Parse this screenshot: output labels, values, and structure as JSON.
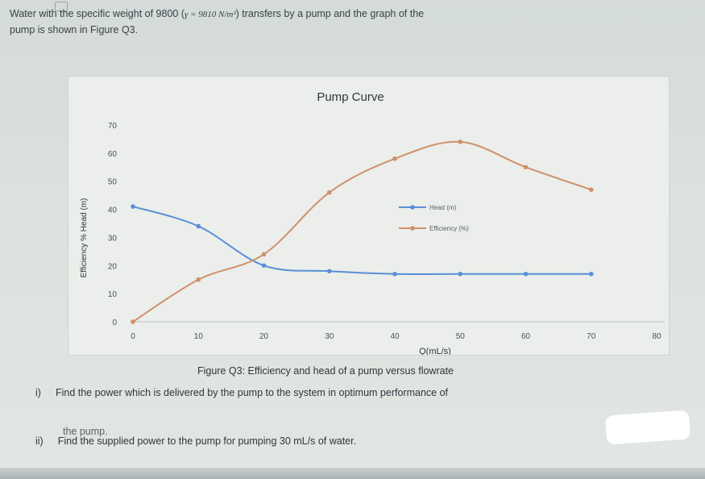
{
  "intro": {
    "line1_before": "Water with the specific weight of 9800 (",
    "formula": "γ = 9810 N/m³",
    "line1_after": ") transfers by a pump and the graph of the",
    "line2": "pump is shown in Figure Q3."
  },
  "caption": "Figure Q3: Efficiency and head of a pump versus flowrate",
  "questions": {
    "q1_marker": "i)",
    "q1_text": "Find the power which is delivered by the pump to the system in optimum performance of",
    "q1_cont": "the pump.",
    "q2_marker": "ii)",
    "q2_text": "Find the supplied power to the pump for pumping 30 mL/s of water."
  },
  "chart_data": {
    "type": "line",
    "title": "Pump Curve",
    "xlabel": "Q(mL/s)",
    "ylabel": "Efficiency % Head (m)",
    "xlim": [
      0,
      80
    ],
    "ylim": [
      0,
      70
    ],
    "x_ticks": [
      0,
      10,
      20,
      30,
      40,
      50,
      60,
      70,
      80
    ],
    "y_ticks": [
      0,
      10,
      20,
      30,
      40,
      50,
      60,
      70
    ],
    "legend_position": "right-middle",
    "grid": false,
    "series": [
      {
        "name": "Head (m)",
        "color": "#5a8fd6",
        "x": [
          0,
          10,
          20,
          30,
          40,
          50,
          60,
          70
        ],
        "y": [
          41,
          34,
          20,
          18,
          17,
          17,
          17,
          17
        ]
      },
      {
        "name": "Efficiency (%)",
        "color": "#d0906a",
        "x": [
          0,
          10,
          20,
          30,
          40,
          50,
          60,
          70
        ],
        "y": [
          0,
          15,
          24,
          46,
          58,
          64,
          55,
          47
        ]
      }
    ]
  }
}
